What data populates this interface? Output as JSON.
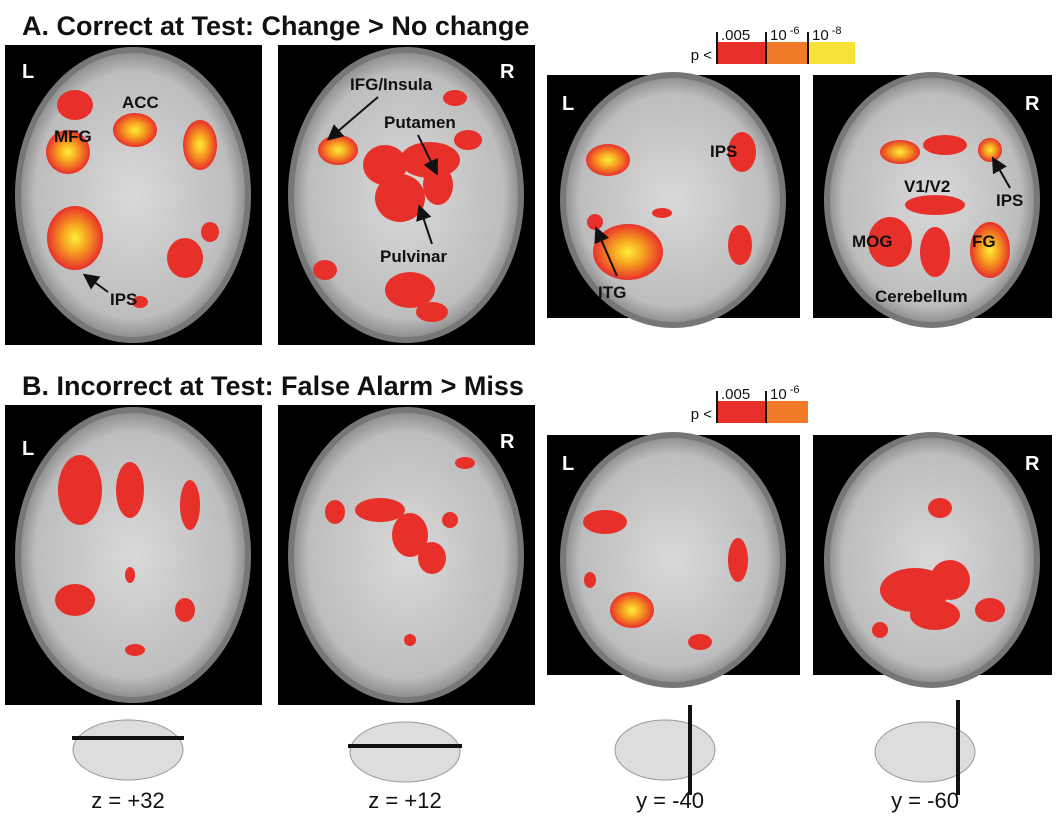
{
  "sections": [
    {
      "title": "A. Correct at Test: Change > No change",
      "legend": {
        "prefix": "p <",
        "thresholds": [
          {
            "base": ".005"
          },
          {
            "base": "10",
            "exponent": "-6"
          },
          {
            "base": "10",
            "exponent": "-8"
          }
        ]
      },
      "images": [
        {
          "side": "L",
          "labels": [
            "MFG",
            "ACC",
            "IPS"
          ]
        },
        {
          "side": "R",
          "labels": [
            "IFG/Insula",
            "Putamen",
            "Pulvinar"
          ]
        },
        {
          "side": "L",
          "labels": [
            "IPS",
            "ITG"
          ]
        },
        {
          "side": "R",
          "labels": [
            "V1/V2",
            "IPS",
            "MOG",
            "FG",
            "Cerebellum"
          ]
        }
      ]
    },
    {
      "title": "B. Incorrect at Test: False Alarm > Miss",
      "legend": {
        "prefix": "p <",
        "thresholds": [
          {
            "base": ".005"
          },
          {
            "base": "10",
            "exponent": "-6"
          }
        ]
      },
      "images": [
        {
          "side": "L"
        },
        {
          "side": "R"
        },
        {
          "side": "L"
        },
        {
          "side": "R"
        }
      ]
    }
  ],
  "slices": [
    "z = +32",
    "z = +12",
    "y = -40",
    "y = -60"
  ]
}
